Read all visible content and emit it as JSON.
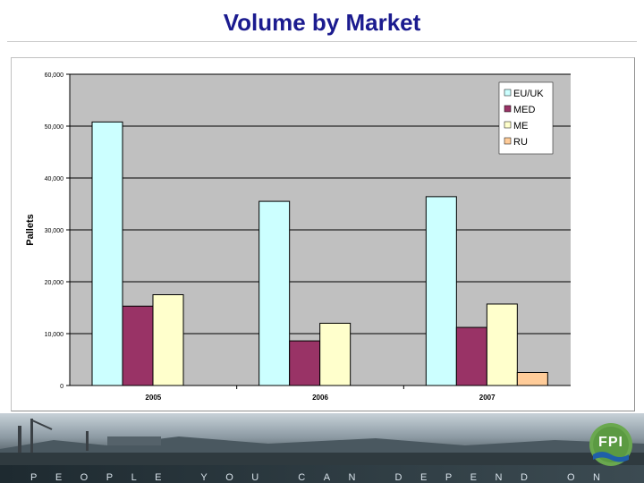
{
  "slide": {
    "title": "Volume by Market",
    "tagline": "PEOPLE YOU CAN DEPEND ON",
    "logo_text": "FPI"
  },
  "colors": {
    "title": "#1b1b8f",
    "plot_bg": "#c0c0c0",
    "eu_uk": "#ccffff",
    "med": "#993366",
    "me": "#ffffcc",
    "ru": "#ffcc99"
  },
  "chart_data": {
    "type": "bar",
    "title": "",
    "xlabel": "",
    "ylabel": "Pallets",
    "ylim": [
      0,
      60000
    ],
    "yticks": [
      0,
      10000,
      20000,
      30000,
      40000,
      50000,
      60000
    ],
    "ytick_labels": [
      "0",
      "10,000",
      "20,000",
      "30,000",
      "40,000",
      "50,000",
      "60,000"
    ],
    "categories": [
      "2005",
      "2006",
      "2007"
    ],
    "legend_position": "top-right",
    "grid": "horizontal",
    "series": [
      {
        "name": "EU/UK",
        "color": "#ccffff",
        "values": [
          50800,
          35500,
          36400
        ]
      },
      {
        "name": "MED",
        "color": "#993366",
        "values": [
          15300,
          8600,
          11200
        ]
      },
      {
        "name": "ME",
        "color": "#ffffcc",
        "values": [
          17500,
          12000,
          15700
        ]
      },
      {
        "name": "RU",
        "color": "#ffcc99",
        "values": [
          0,
          0,
          2500
        ]
      }
    ]
  }
}
